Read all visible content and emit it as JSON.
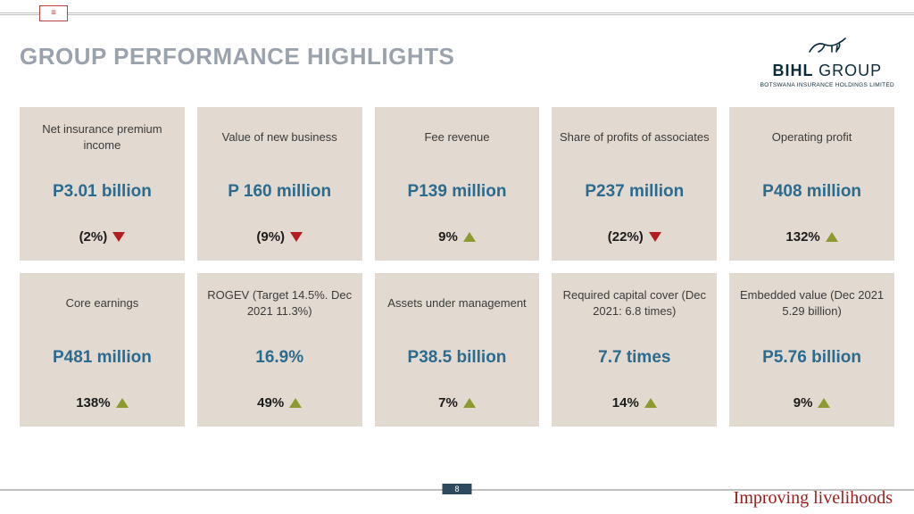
{
  "page": {
    "title": "GROUP PERFORMANCE HIGHLIGHTS",
    "page_number": "8",
    "tagline": "Improving livelihoods"
  },
  "brand": {
    "name_bold": "BIHL",
    "name_thin": "GROUP",
    "subtitle": "BOTSWANA INSURANCE HOLDINGS LIMITED"
  },
  "colors": {
    "card_bg": "#e2dad0",
    "value_color": "#2b6b8f",
    "title_color": "#9aa3ad",
    "up_color": "#8c9a2e",
    "down_color": "#b31d1d",
    "text_color": "#1b1b1b",
    "tagline_color": "#9a1d1d",
    "pagetab_bg": "#2e4a5e"
  },
  "cards": [
    {
      "label": "Net insurance premium income",
      "value": "P3.01 billion",
      "change": "(2%)",
      "direction": "down"
    },
    {
      "label": "Value of new business",
      "value": "P 160 million",
      "change": "(9%)",
      "direction": "down"
    },
    {
      "label": "Fee revenue",
      "value": "P139 million",
      "change": "9%",
      "direction": "up"
    },
    {
      "label": "Share of profits of associates",
      "value": "P237 million",
      "change": "(22%)",
      "direction": "down"
    },
    {
      "label": "Operating profit",
      "value": "P408 million",
      "change": "132%",
      "direction": "up"
    },
    {
      "label": "Core earnings",
      "value": "P481 million",
      "change": "138%",
      "direction": "up"
    },
    {
      "label": "ROGEV (Target 14.5%. Dec 2021 11.3%)",
      "value": "16.9%",
      "change": "49%",
      "direction": "up"
    },
    {
      "label": "Assets under management",
      "value": "P38.5 billion",
      "change": "7%",
      "direction": "up"
    },
    {
      "label": "Required capital cover (Dec 2021: 6.8 times)",
      "value": "7.7 times",
      "change": "14%",
      "direction": "up"
    },
    {
      "label": "Embedded value (Dec 2021 5.29 billion)",
      "value": "P5.76 billion",
      "change": "9%",
      "direction": "up"
    }
  ]
}
